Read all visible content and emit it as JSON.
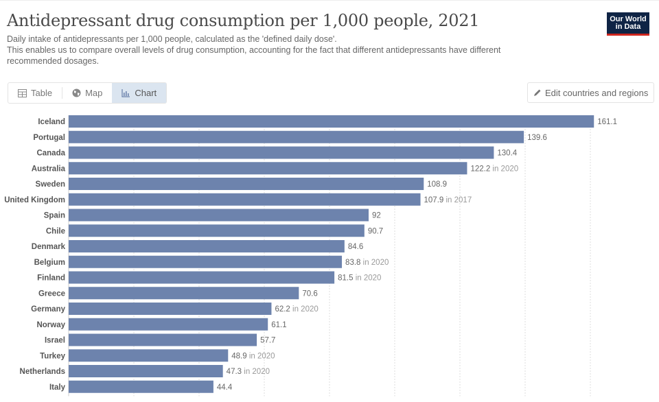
{
  "header": {
    "title": "Antidepressant drug consumption per 1,000 people, 2021",
    "subtitle_line1": "Daily intake of antidepressants per 1,000 people, calculated as the 'defined daily dose'.",
    "subtitle_line2": "This enables us to compare overall levels of drug consumption, accounting for the fact that different antidepressants have different recommended dosages.",
    "logo_line1": "Our World",
    "logo_line2": "in Data"
  },
  "tabs": [
    {
      "label": "Table",
      "icon": "table-icon",
      "active": false
    },
    {
      "label": "Map",
      "icon": "globe-icon",
      "active": false
    },
    {
      "label": "Chart",
      "icon": "bar-chart-icon",
      "active": true
    }
  ],
  "edit_button": {
    "label": "Edit countries and regions",
    "icon": "pencil-icon"
  },
  "colors": {
    "bar": "#6d83ad",
    "grid": "#dcdcdc",
    "logo_bg": "#0f2445",
    "logo_accent": "#ce261e"
  },
  "chart_data": {
    "type": "bar",
    "orientation": "horizontal",
    "title": "Antidepressant drug consumption per 1,000 people, 2021",
    "xlabel": "",
    "ylabel": "",
    "xlim": [
      0,
      160
    ],
    "grid": true,
    "grid_step": 20,
    "categories": [
      "Iceland",
      "Portugal",
      "Canada",
      "Australia",
      "Sweden",
      "United Kingdom",
      "Spain",
      "Chile",
      "Denmark",
      "Belgium",
      "Finland",
      "Greece",
      "Germany",
      "Norway",
      "Israel",
      "Turkey",
      "Netherlands",
      "Italy"
    ],
    "values": [
      161.1,
      139.6,
      130.4,
      122.2,
      108.9,
      107.9,
      92,
      90.7,
      84.6,
      83.8,
      81.5,
      70.6,
      62.2,
      61.1,
      57.7,
      48.9,
      47.3,
      44.4
    ],
    "value_labels": [
      "161.1",
      "139.6",
      "130.4",
      "122.2",
      "108.9",
      "107.9",
      "92",
      "90.7",
      "84.6",
      "83.8",
      "81.5",
      "70.6",
      "62.2",
      "61.1",
      "57.7",
      "48.9",
      "47.3",
      "44.4"
    ],
    "year_notes": [
      "",
      "",
      "",
      "in 2020",
      "",
      "in 2017",
      "",
      "",
      "",
      "in 2020",
      "in 2020",
      "",
      "in 2020",
      "",
      "",
      "in 2020",
      "in 2020",
      ""
    ]
  }
}
